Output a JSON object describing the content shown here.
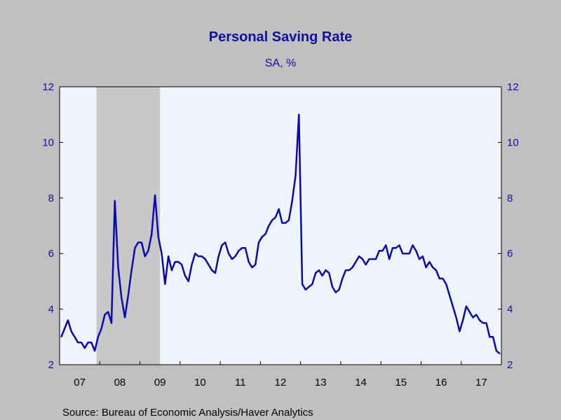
{
  "chart_data": {
    "type": "line",
    "title": "Personal Saving Rate",
    "subtitle": "SA, %",
    "source": "Source:  Bureau of Economic Analysis/Haver Analytics",
    "ylim": [
      2,
      12
    ],
    "y_ticks": [
      "2",
      "4",
      "6",
      "8",
      "10",
      "12"
    ],
    "x_start": "2007-01",
    "x_end": "2017-12",
    "x_ticks": [
      "07",
      "08",
      "09",
      "10",
      "11",
      "12",
      "13",
      "14",
      "15",
      "16",
      "17"
    ],
    "grid": false,
    "recession": {
      "start": "2007-12",
      "end": "2009-06",
      "color": "#c8c8c8"
    },
    "colors": {
      "plot_bg": "#eef5ff",
      "line": "#0a0ab0",
      "text": "#1010a0",
      "frame": "#000000",
      "page_bg": "#c0c0c0"
    },
    "series": [
      {
        "values": [
          3.0,
          3.3,
          3.6,
          3.2,
          3.0,
          2.8,
          2.8,
          2.6,
          2.8,
          2.8,
          2.5,
          3.0,
          3.3,
          3.8,
          3.9,
          3.5,
          7.9,
          5.5,
          4.4,
          3.7,
          4.5,
          5.4,
          6.2,
          6.4,
          6.4,
          5.9,
          6.1,
          6.7,
          8.1,
          6.6,
          6.0,
          4.9,
          5.9,
          5.4,
          5.7,
          5.7,
          5.6,
          5.2,
          5.0,
          5.6,
          6.0,
          5.9,
          5.9,
          5.8,
          5.6,
          5.4,
          5.3,
          5.9,
          6.3,
          6.4,
          6.0,
          5.8,
          5.9,
          6.1,
          6.2,
          6.2,
          5.7,
          5.5,
          5.6,
          6.4,
          6.6,
          6.7,
          7.0,
          7.2,
          7.3,
          7.6,
          7.1,
          7.1,
          7.2,
          7.9,
          8.8,
          11.0,
          4.9,
          4.7,
          4.8,
          4.9,
          5.3,
          5.4,
          5.2,
          5.4,
          5.3,
          4.8,
          4.6,
          4.7,
          5.1,
          5.4,
          5.4,
          5.5,
          5.7,
          5.9,
          5.8,
          5.6,
          5.8,
          5.8,
          5.8,
          6.1,
          6.1,
          6.3,
          5.8,
          6.2,
          6.2,
          6.3,
          6.0,
          6.0,
          6.0,
          6.3,
          6.1,
          5.8,
          5.9,
          5.5,
          5.7,
          5.5,
          5.4,
          5.1,
          5.1,
          4.9,
          4.5,
          4.1,
          3.7,
          3.2,
          3.6,
          4.1,
          3.9,
          3.7,
          3.8,
          3.6,
          3.5,
          3.5,
          3.0,
          3.0,
          2.5,
          2.4
        ]
      }
    ]
  }
}
